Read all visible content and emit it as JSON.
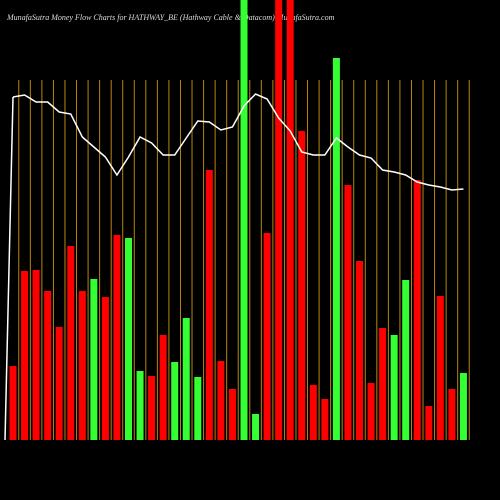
{
  "chart_data": {
    "type": "bar",
    "title": "MunafaSutra  Money Flow  Charts for HATHWAY_BE  (Hathway Cable   & Datacom) MunafaSutra.com",
    "ylim": [
      0,
      440
    ],
    "bars": {
      "values": [
        74,
        169,
        170,
        149,
        113,
        194,
        149,
        161,
        143,
        205,
        202,
        69,
        64,
        105,
        78,
        122,
        63,
        270,
        79,
        51,
        440,
        26,
        207,
        440,
        440,
        309,
        55,
        41,
        382,
        255,
        179,
        57,
        112,
        105,
        160,
        260,
        34,
        144,
        51,
        67
      ],
      "colors": [
        "#ff0000",
        "#ff0000",
        "#ff0000",
        "#ff0000",
        "#ff0000",
        "#ff0000",
        "#ff0000",
        "#33ff33",
        "#ff0000",
        "#ff0000",
        "#33ff33",
        "#33ff33",
        "#ff0000",
        "#ff0000",
        "#33ff33",
        "#33ff33",
        "#33ff33",
        "#ff0000",
        "#ff0000",
        "#ff0000",
        "#33ff33",
        "#33ff33",
        "#ff0000",
        "#ff0000",
        "#ff0000",
        "#ff0000",
        "#ff0000",
        "#ff0000",
        "#33ff33",
        "#ff0000",
        "#ff0000",
        "#ff0000",
        "#ff0000",
        "#33ff33",
        "#33ff33",
        "#ff0000",
        "#ff0000",
        "#ff0000",
        "#ff0000",
        "#33ff33"
      ]
    },
    "line": {
      "color": "#ffffff",
      "values": [
        343,
        345,
        338,
        338,
        328,
        326,
        303,
        293,
        283,
        265,
        283,
        303,
        297,
        285,
        285,
        302,
        319,
        318,
        310,
        313,
        334,
        346,
        341,
        322,
        309,
        288,
        285,
        285,
        302,
        293,
        285,
        282,
        270,
        268,
        265,
        258,
        255,
        253,
        250,
        251
      ]
    }
  }
}
